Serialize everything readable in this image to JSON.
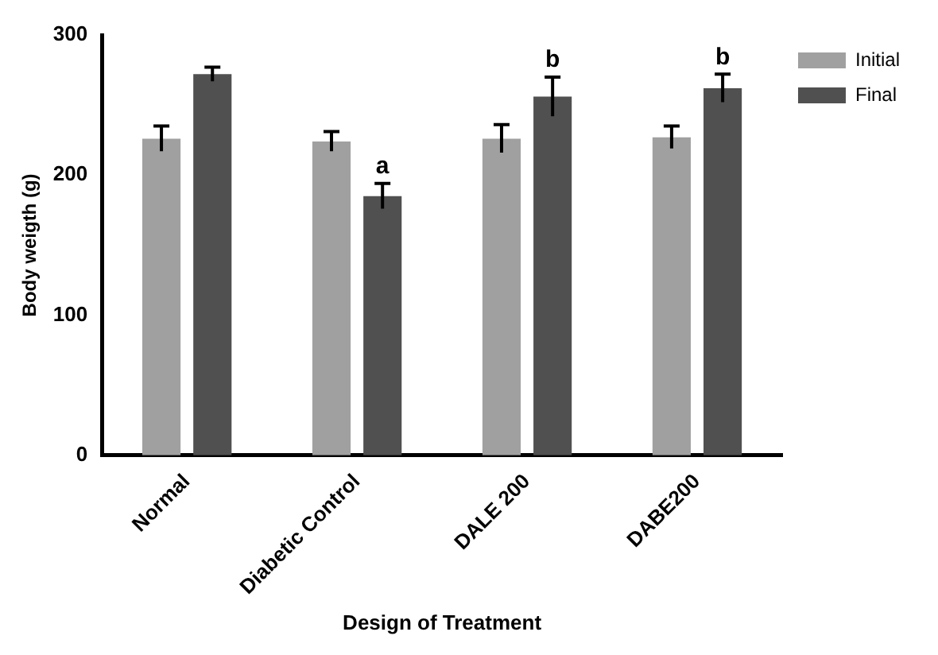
{
  "chart_data": {
    "type": "bar",
    "xlabel": "Design of Treatment",
    "ylabel": "Body weigth (g)",
    "categories": [
      "Normal",
      "Diabetic Control",
      "DALE 200",
      "DABE200"
    ],
    "series": [
      {
        "name": "Initial",
        "color": "#a0a0a0",
        "values": [
          226,
          224,
          226,
          227
        ],
        "errors": [
          9,
          7,
          10,
          8
        ]
      },
      {
        "name": "Final",
        "color": "#505050",
        "values": [
          272,
          185,
          256,
          262
        ],
        "errors": [
          5,
          9,
          14,
          10
        ]
      }
    ],
    "ylim": [
      0,
      300
    ],
    "yticks": [
      0,
      100,
      200,
      300
    ],
    "grid": false,
    "legend": "top right",
    "annotations": [
      {
        "text": "a",
        "x": "Diabetic Control",
        "y": 185
      },
      {
        "text": "b",
        "x": "DALE 200",
        "y": 256
      },
      {
        "text": "b",
        "x": "DABE200",
        "y": 262
      }
    ]
  }
}
